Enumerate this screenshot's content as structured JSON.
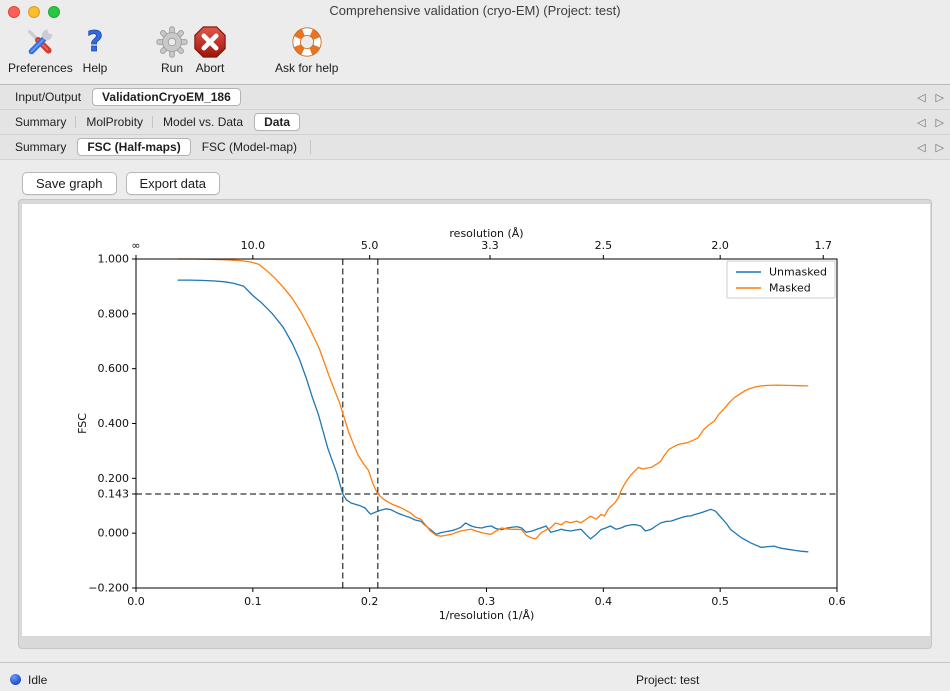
{
  "window": {
    "title": "Comprehensive validation (cryo-EM) (Project: test)",
    "traffic_lights": {
      "close": "#ff5f57",
      "minimize": "#febc2e",
      "zoom": "#28c840"
    }
  },
  "toolbar": {
    "items": [
      {
        "label": "Preferences",
        "icon": "tools-icon"
      },
      {
        "label": "Help",
        "icon": "question-mark-icon"
      },
      {
        "label": "Run",
        "icon": "gear-icon"
      },
      {
        "label": "Abort",
        "icon": "stop-x-icon"
      },
      {
        "label": "Ask for help",
        "icon": "lifebuoy-icon"
      }
    ]
  },
  "tab_nav": {
    "left": "◁",
    "right": "▷"
  },
  "tab_rows": [
    {
      "tabs": [
        {
          "label": "Input/Output",
          "selected": false
        },
        {
          "label": "ValidationCryoEM_186",
          "selected": true
        }
      ]
    },
    {
      "tabs": [
        {
          "label": "Summary",
          "selected": false
        },
        {
          "label": "MolProbity",
          "selected": false
        },
        {
          "label": "Model vs. Data",
          "selected": false
        },
        {
          "label": "Data",
          "selected": true
        }
      ]
    },
    {
      "tabs": [
        {
          "label": "Summary",
          "selected": false
        },
        {
          "label": "FSC (Half-maps)",
          "selected": true
        },
        {
          "label": "FSC (Model-map)",
          "selected": false
        }
      ]
    }
  ],
  "actions": {
    "save_graph": "Save graph",
    "export_data": "Export data"
  },
  "status_bar": {
    "state": "Idle",
    "project": "Project: test",
    "dot_color": "#1c49c8"
  },
  "chart_data": {
    "type": "line",
    "top_axis_label": "resolution (Å)",
    "top_ticks": [
      {
        "label": "∞",
        "v": 0.0
      },
      {
        "label": "10.0",
        "v": 0.1
      },
      {
        "label": "5.0",
        "v": 0.2
      },
      {
        "label": "3.3",
        "v": 0.30303
      },
      {
        "label": "2.5",
        "v": 0.4
      },
      {
        "label": "2.0",
        "v": 0.5
      },
      {
        "label": "1.7",
        "v": 0.58824
      }
    ],
    "xlabel": "1/resolution (1/Å)",
    "ylabel": "FSC",
    "xlim": [
      0.0,
      0.6
    ],
    "ylim": [
      -0.2,
      1.0
    ],
    "x_ticks": [
      {
        "label": "0.0",
        "v": 0.0
      },
      {
        "label": "0.1",
        "v": 0.1
      },
      {
        "label": "0.2",
        "v": 0.2
      },
      {
        "label": "0.3",
        "v": 0.3
      },
      {
        "label": "0.4",
        "v": 0.4
      },
      {
        "label": "0.5",
        "v": 0.5
      },
      {
        "label": "0.6",
        "v": 0.6
      }
    ],
    "y_ticks": [
      {
        "label": "1.000",
        "v": 1.0
      },
      {
        "label": "0.800",
        "v": 0.8
      },
      {
        "label": "0.600",
        "v": 0.6
      },
      {
        "label": "0.400",
        "v": 0.4
      },
      {
        "label": "0.200",
        "v": 0.2
      },
      {
        "label": "0.143",
        "v": 0.143
      },
      {
        "label": "0.000",
        "v": 0.0
      },
      {
        "label": "−0.200",
        "v": -0.2
      }
    ],
    "threshold_fsc": 0.143,
    "resolution_crossings": [
      0.177,
      0.207
    ],
    "legend": {
      "position": "upper right",
      "entries": [
        {
          "name": "Unmasked",
          "color": "#1f77b4"
        },
        {
          "name": "Masked",
          "color": "#ff7f0e"
        }
      ]
    },
    "series": [
      {
        "name": "Unmasked",
        "color": "#1f77b4",
        "points": [
          [
            0.036,
            0.923
          ],
          [
            0.046,
            0.923
          ],
          [
            0.056,
            0.922
          ],
          [
            0.066,
            0.92
          ],
          [
            0.076,
            0.917
          ],
          [
            0.084,
            0.911
          ],
          [
            0.092,
            0.901
          ],
          [
            0.1,
            0.867
          ],
          [
            0.108,
            0.838
          ],
          [
            0.117,
            0.799
          ],
          [
            0.126,
            0.751
          ],
          [
            0.134,
            0.69
          ],
          [
            0.14,
            0.633
          ],
          [
            0.146,
            0.562
          ],
          [
            0.151,
            0.495
          ],
          [
            0.156,
            0.434
          ],
          [
            0.16,
            0.374
          ],
          [
            0.164,
            0.312
          ],
          [
            0.168,
            0.264
          ],
          [
            0.172,
            0.217
          ],
          [
            0.175,
            0.172
          ],
          [
            0.177,
            0.143
          ],
          [
            0.18,
            0.122
          ],
          [
            0.184,
            0.11
          ],
          [
            0.188,
            0.105
          ],
          [
            0.192,
            0.1
          ],
          [
            0.196,
            0.092
          ],
          [
            0.199,
            0.077
          ],
          [
            0.201,
            0.069
          ],
          [
            0.205,
            0.077
          ],
          [
            0.209,
            0.083
          ],
          [
            0.214,
            0.089
          ],
          [
            0.218,
            0.086
          ],
          [
            0.223,
            0.075
          ],
          [
            0.227,
            0.068
          ],
          [
            0.231,
            0.062
          ],
          [
            0.235,
            0.056
          ],
          [
            0.239,
            0.048
          ],
          [
            0.244,
            0.043
          ],
          [
            0.248,
            0.027
          ],
          [
            0.252,
            0.013
          ],
          [
            0.257,
            -0.004
          ],
          [
            0.261,
            0.002
          ],
          [
            0.266,
            0.006
          ],
          [
            0.27,
            0.009
          ],
          [
            0.274,
            0.014
          ],
          [
            0.278,
            0.021
          ],
          [
            0.282,
            0.037
          ],
          [
            0.287,
            0.026
          ],
          [
            0.291,
            0.021
          ],
          [
            0.296,
            0.019
          ],
          [
            0.3,
            0.024
          ],
          [
            0.304,
            0.026
          ],
          [
            0.308,
            0.017
          ],
          [
            0.313,
            0.013
          ],
          [
            0.317,
            0.018
          ],
          [
            0.321,
            0.021
          ],
          [
            0.326,
            0.024
          ],
          [
            0.33,
            0.019
          ],
          [
            0.334,
            0.003
          ],
          [
            0.339,
            0.008
          ],
          [
            0.343,
            0.014
          ],
          [
            0.347,
            0.02
          ],
          [
            0.351,
            0.026
          ],
          [
            0.355,
            0.003
          ],
          [
            0.36,
            0.009
          ],
          [
            0.364,
            0.014
          ],
          [
            0.368,
            0.01
          ],
          [
            0.372,
            0.008
          ],
          [
            0.377,
            0.012
          ],
          [
            0.381,
            0.014
          ],
          [
            0.385,
            -0.004
          ],
          [
            0.389,
            -0.021
          ],
          [
            0.394,
            -0.004
          ],
          [
            0.398,
            0.013
          ],
          [
            0.402,
            0.019
          ],
          [
            0.406,
            0.026
          ],
          [
            0.411,
            0.014
          ],
          [
            0.415,
            0.019
          ],
          [
            0.419,
            0.026
          ],
          [
            0.424,
            0.031
          ],
          [
            0.428,
            0.031
          ],
          [
            0.432,
            0.026
          ],
          [
            0.436,
            0.008
          ],
          [
            0.441,
            0.014
          ],
          [
            0.445,
            0.026
          ],
          [
            0.449,
            0.037
          ],
          [
            0.454,
            0.043
          ],
          [
            0.458,
            0.044
          ],
          [
            0.462,
            0.05
          ],
          [
            0.467,
            0.057
          ],
          [
            0.471,
            0.062
          ],
          [
            0.475,
            0.063
          ],
          [
            0.479,
            0.069
          ],
          [
            0.484,
            0.075
          ],
          [
            0.488,
            0.081
          ],
          [
            0.492,
            0.087
          ],
          [
            0.496,
            0.08
          ],
          [
            0.501,
            0.056
          ],
          [
            0.505,
            0.037
          ],
          [
            0.509,
            0.013
          ],
          [
            0.514,
            -0.003
          ],
          [
            0.518,
            -0.016
          ],
          [
            0.526,
            -0.035
          ],
          [
            0.535,
            -0.052
          ],
          [
            0.541,
            -0.049
          ],
          [
            0.546,
            -0.047
          ],
          [
            0.552,
            -0.055
          ],
          [
            0.558,
            -0.059
          ],
          [
            0.564,
            -0.063
          ],
          [
            0.57,
            -0.066
          ],
          [
            0.575,
            -0.068
          ]
        ]
      },
      {
        "name": "Masked",
        "color": "#ff7f0e",
        "points": [
          [
            0.036,
            1.0
          ],
          [
            0.05,
            1.0
          ],
          [
            0.064,
            0.999
          ],
          [
            0.078,
            0.997
          ],
          [
            0.09,
            0.994
          ],
          [
            0.098,
            0.989
          ],
          [
            0.105,
            0.981
          ],
          [
            0.112,
            0.957
          ],
          [
            0.119,
            0.93
          ],
          [
            0.126,
            0.897
          ],
          [
            0.134,
            0.855
          ],
          [
            0.142,
            0.8
          ],
          [
            0.149,
            0.744
          ],
          [
            0.157,
            0.672
          ],
          [
            0.165,
            0.576
          ],
          [
            0.17,
            0.521
          ],
          [
            0.174,
            0.478
          ],
          [
            0.178,
            0.424
          ],
          [
            0.182,
            0.369
          ],
          [
            0.186,
            0.326
          ],
          [
            0.19,
            0.285
          ],
          [
            0.195,
            0.252
          ],
          [
            0.199,
            0.229
          ],
          [
            0.203,
            0.178
          ],
          [
            0.207,
            0.143
          ],
          [
            0.211,
            0.127
          ],
          [
            0.215,
            0.115
          ],
          [
            0.219,
            0.106
          ],
          [
            0.223,
            0.099
          ],
          [
            0.227,
            0.092
          ],
          [
            0.231,
            0.083
          ],
          [
            0.235,
            0.074
          ],
          [
            0.239,
            0.059
          ],
          [
            0.244,
            0.05
          ],
          [
            0.248,
            0.029
          ],
          [
            0.252,
            0.008
          ],
          [
            0.257,
            -0.008
          ],
          [
            0.261,
            -0.011
          ],
          [
            0.266,
            -0.007
          ],
          [
            0.27,
            -0.004
          ],
          [
            0.274,
            0.002
          ],
          [
            0.278,
            0.008
          ],
          [
            0.283,
            0.012
          ],
          [
            0.287,
            0.014
          ],
          [
            0.291,
            0.008
          ],
          [
            0.296,
            0.002
          ],
          [
            0.3,
            -0.002
          ],
          [
            0.304,
            -0.004
          ],
          [
            0.308,
            0.008
          ],
          [
            0.313,
            0.019
          ],
          [
            0.317,
            0.016
          ],
          [
            0.321,
            0.014
          ],
          [
            0.326,
            0.014
          ],
          [
            0.33,
            0.013
          ],
          [
            0.334,
            -0.008
          ],
          [
            0.338,
            -0.016
          ],
          [
            0.342,
            -0.021
          ],
          [
            0.347,
            0.002
          ],
          [
            0.351,
            0.012
          ],
          [
            0.355,
            0.02
          ],
          [
            0.359,
            0.037
          ],
          [
            0.364,
            0.031
          ],
          [
            0.368,
            0.043
          ],
          [
            0.372,
            0.038
          ],
          [
            0.377,
            0.044
          ],
          [
            0.381,
            0.038
          ],
          [
            0.385,
            0.05
          ],
          [
            0.389,
            0.062
          ],
          [
            0.394,
            0.051
          ],
          [
            0.398,
            0.068
          ],
          [
            0.401,
            0.063
          ],
          [
            0.404,
            0.086
          ],
          [
            0.407,
            0.099
          ],
          [
            0.41,
            0.111
          ],
          [
            0.413,
            0.13
          ],
          [
            0.415,
            0.154
          ],
          [
            0.418,
            0.178
          ],
          [
            0.421,
            0.198
          ],
          [
            0.424,
            0.214
          ],
          [
            0.427,
            0.227
          ],
          [
            0.43,
            0.24
          ],
          [
            0.434,
            0.234
          ],
          [
            0.438,
            0.238
          ],
          [
            0.441,
            0.24
          ],
          [
            0.445,
            0.25
          ],
          [
            0.449,
            0.262
          ],
          [
            0.452,
            0.283
          ],
          [
            0.456,
            0.305
          ],
          [
            0.46,
            0.315
          ],
          [
            0.464,
            0.323
          ],
          [
            0.468,
            0.327
          ],
          [
            0.472,
            0.33
          ],
          [
            0.477,
            0.339
          ],
          [
            0.481,
            0.348
          ],
          [
            0.486,
            0.378
          ],
          [
            0.49,
            0.394
          ],
          [
            0.495,
            0.409
          ],
          [
            0.499,
            0.434
          ],
          [
            0.504,
            0.457
          ],
          [
            0.508,
            0.477
          ],
          [
            0.512,
            0.494
          ],
          [
            0.517,
            0.508
          ],
          [
            0.521,
            0.519
          ],
          [
            0.525,
            0.527
          ],
          [
            0.53,
            0.533
          ],
          [
            0.535,
            0.537
          ],
          [
            0.541,
            0.539
          ],
          [
            0.549,
            0.54
          ],
          [
            0.558,
            0.539
          ],
          [
            0.567,
            0.538
          ],
          [
            0.575,
            0.537
          ]
        ]
      }
    ]
  }
}
